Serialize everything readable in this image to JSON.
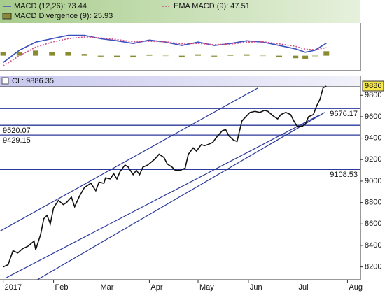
{
  "chart_data": [
    {
      "type": "macd",
      "x": [
        0,
        10,
        20,
        30,
        40,
        50,
        60,
        70,
        80,
        90,
        100,
        110,
        120,
        130,
        140,
        150,
        160,
        170,
        180,
        186,
        192,
        199
      ],
      "xlim": [
        -2,
        220
      ],
      "ylim": [
        -80,
        180
      ],
      "series": [
        {
          "name": "MACD (12,26): 73.44",
          "type": "line",
          "color": "#3a4fc0",
          "values": [
            -40,
            32,
            80,
            100,
            120,
            120,
            100,
            88,
            72,
            92,
            80,
            60,
            80,
            60,
            72,
            88,
            80,
            60,
            40,
            20,
            32,
            73.44
          ]
        },
        {
          "name": "EMA MACD (9): 47.51",
          "type": "dotted",
          "color": "#d0508a",
          "values": [
            -60,
            0,
            50,
            80,
            100,
            110,
            105,
            95,
            82,
            85,
            82,
            70,
            72,
            65,
            68,
            80,
            82,
            70,
            55,
            38,
            35,
            47.51
          ]
        },
        {
          "name": "MACD Divergence (9): 25.93",
          "type": "bar",
          "color": "#8a8a30",
          "values": [
            20,
            20,
            30,
            20,
            20,
            10,
            -5,
            -7,
            -10,
            7,
            -2,
            -10,
            8,
            -5,
            4,
            8,
            -2,
            -10,
            -15,
            -18,
            -3,
            25.93
          ]
        }
      ]
    },
    {
      "type": "line",
      "header": "CL: 9886.35",
      "last_price": {
        "value": 9886.35,
        "label": "9886"
      },
      "x": [
        0,
        3,
        6,
        9,
        12,
        15,
        19,
        20,
        23,
        25,
        27,
        29,
        31,
        34,
        37,
        39,
        42,
        44,
        47,
        50,
        54,
        57,
        59,
        62,
        63,
        66,
        68,
        70,
        72,
        75,
        77,
        80,
        82,
        84,
        86,
        89,
        93,
        96,
        99,
        101,
        104,
        106,
        109,
        112,
        114,
        117,
        119,
        122,
        124,
        126,
        129,
        132,
        135,
        137,
        139,
        142,
        144,
        147,
        150,
        152,
        155,
        158,
        161,
        163,
        166,
        169,
        171,
        174,
        177,
        179,
        181,
        184,
        186,
        188,
        191,
        193,
        195,
        197,
        199
      ],
      "xlim": [
        -2,
        220
      ],
      "xticks": [
        {
          "value": 0,
          "label": "2017"
        },
        {
          "value": 31,
          "label": "Feb"
        },
        {
          "value": 59,
          "label": "Mar"
        },
        {
          "value": 90,
          "label": "Apr"
        },
        {
          "value": 120,
          "label": "May"
        },
        {
          "value": 151,
          "label": "Jun"
        },
        {
          "value": 181,
          "label": "Jul"
        },
        {
          "value": 212,
          "label": "Aug"
        }
      ],
      "ylim": [
        8080,
        9880
      ],
      "yticks": [
        8200,
        8400,
        8600,
        8800,
        9000,
        9200,
        9400,
        9600,
        9800
      ],
      "series": [
        {
          "color": "#111111",
          "values": [
            8200,
            8220,
            8350,
            8330,
            8370,
            8390,
            8440,
            8360,
            8500,
            8650,
            8680,
            8600,
            8750,
            8820,
            8780,
            8800,
            8850,
            8760,
            8860,
            8940,
            8980,
            8910,
            8990,
            8980,
            9030,
            9020,
            9070,
            9020,
            9090,
            9150,
            9130,
            9060,
            9100,
            9060,
            9130,
            9150,
            9200,
            9250,
            9220,
            9160,
            9130,
            9100,
            9100,
            9120,
            9250,
            9310,
            9280,
            9340,
            9330,
            9340,
            9360,
            9420,
            9470,
            9480,
            9420,
            9380,
            9370,
            9560,
            9610,
            9640,
            9650,
            9640,
            9660,
            9650,
            9610,
            9580,
            9620,
            9640,
            9620,
            9560,
            9510,
            9510,
            9530,
            9600,
            9620,
            9700,
            9760,
            9870,
            9886
          ]
        }
      ],
      "trend_lines": [
        {
          "color": "#2b3a9c",
          "x": [
            -2,
            157
          ],
          "values": [
            8533,
            9870
          ]
        },
        {
          "color": "#2b3a9c",
          "x": [
            2,
            194
          ],
          "values": [
            8100,
            9610
          ]
        },
        {
          "color": "#2b3a9c",
          "x": [
            21,
            198
          ],
          "values": [
            8080,
            9640
          ]
        }
      ],
      "levels": [
        {
          "value": 9676.17,
          "side": "right",
          "color": "#2b3a9c"
        },
        {
          "value": 9520.07,
          "side": "left",
          "color": "#2b3a9c"
        },
        {
          "value": 9429.15,
          "side": "left",
          "color": "#2b3a9c"
        },
        {
          "value": 9108.53,
          "side": "right",
          "color": "#2b3a9c"
        }
      ]
    }
  ]
}
